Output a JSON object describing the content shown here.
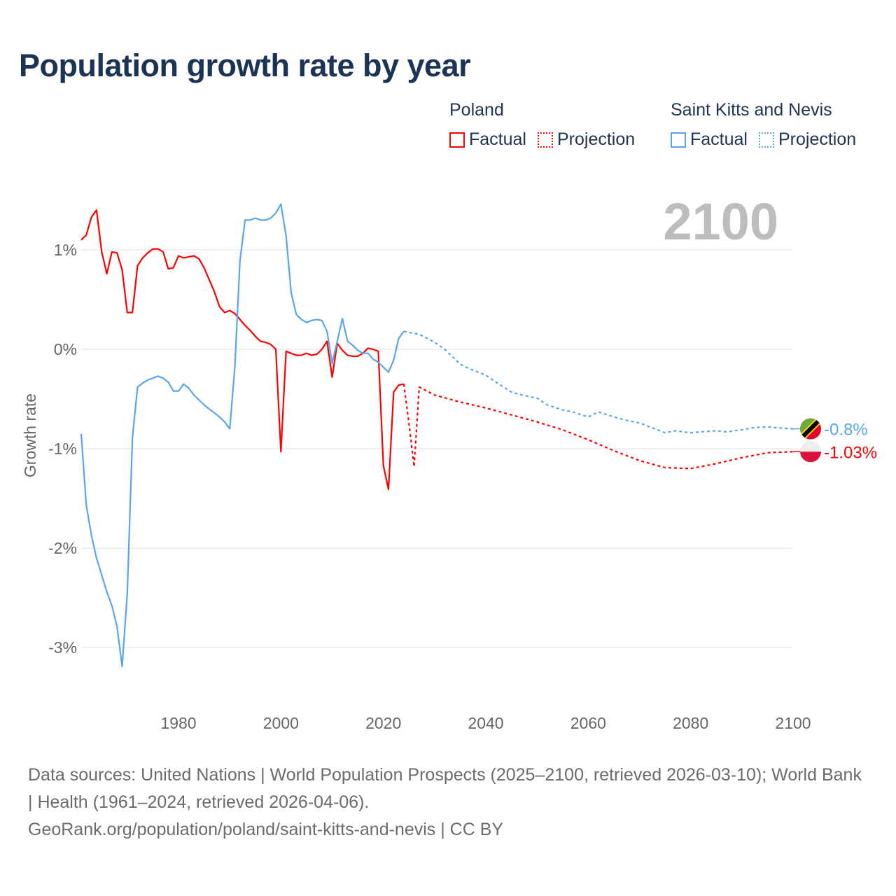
{
  "title": "Population growth rate by year",
  "legend": {
    "groups": [
      {
        "name": "Poland",
        "factual": "Factual",
        "projection": "Projection",
        "color": "#ff0000"
      },
      {
        "name": "Saint Kitts and Nevis",
        "factual": "Factual",
        "projection": "Projection",
        "color": "#5aa5ec"
      }
    ]
  },
  "year_display": "2100",
  "footer": {
    "sources": "Data sources: United Nations | World Population Prospects (2025–2100, retrieved 2026-03-10); World Bank | Health (1961–2024, retrieved 2026-04-06).",
    "credit": "GeoRank.org/population/poland/saint-kitts-and-nevis | CC BY"
  },
  "chart_data": {
    "type": "line",
    "title": "Population growth rate by year",
    "xlabel": "",
    "ylabel": "Growth rate",
    "xlim": [
      1961,
      2100
    ],
    "ylim": [
      -3.4,
      1.6
    ],
    "x_ticks": [
      1980,
      2000,
      2020,
      2040,
      2060,
      2080,
      2100
    ],
    "x_tick_labels": [
      "1980",
      "2000",
      "2020",
      "2040",
      "2060",
      "2080",
      "2100"
    ],
    "y_ticks": [
      1,
      0,
      -1,
      -2,
      -3
    ],
    "y_tick_labels": [
      "1%",
      "0%",
      "-1%",
      "-2%",
      "-3%"
    ],
    "grid": true,
    "legend_position": "top-right",
    "series": [
      {
        "name": "Poland Factual",
        "color": "#ff0000",
        "style": "solid",
        "x": [
          1961,
          1962,
          1963,
          1964,
          1965,
          1966,
          1967,
          1968,
          1969,
          1970,
          1971,
          1972,
          1973,
          1974,
          1975,
          1976,
          1977,
          1978,
          1979,
          1980,
          1981,
          1982,
          1983,
          1984,
          1985,
          1986,
          1987,
          1988,
          1989,
          1990,
          1991,
          1992,
          1993,
          1994,
          1995,
          1996,
          1997,
          1998,
          1999,
          2000,
          2001,
          2002,
          2003,
          2004,
          2005,
          2006,
          2007,
          2008,
          2009,
          2010,
          2011,
          2012,
          2013,
          2014,
          2015,
          2016,
          2017,
          2018,
          2019,
          2020,
          2021,
          2022,
          2023,
          2024
        ],
        "y": [
          1.1,
          1.15,
          1.33,
          1.4,
          0.98,
          0.76,
          0.98,
          0.97,
          0.8,
          0.37,
          0.37,
          0.84,
          0.92,
          0.97,
          1.01,
          1.01,
          0.98,
          0.81,
          0.82,
          0.94,
          0.92,
          0.93,
          0.94,
          0.91,
          0.82,
          0.7,
          0.58,
          0.43,
          0.37,
          0.39,
          0.36,
          0.3,
          0.24,
          0.19,
          0.13,
          0.08,
          0.07,
          0.05,
          0.0,
          -1.03,
          -0.02,
          -0.04,
          -0.06,
          -0.06,
          -0.04,
          -0.06,
          -0.05,
          0.0,
          0.08,
          -0.28,
          0.06,
          -0.01,
          -0.06,
          -0.07,
          -0.07,
          -0.04,
          0.01,
          0.0,
          -0.02,
          -1.17,
          -1.41,
          -0.43,
          -0.36,
          -0.35
        ]
      },
      {
        "name": "Poland Projection",
        "color": "#ff0000",
        "style": "dotted",
        "x": [
          2024,
          2025,
          2026,
          2027,
          2030,
          2035,
          2040,
          2045,
          2050,
          2055,
          2060,
          2065,
          2070,
          2075,
          2080,
          2085,
          2090,
          2095,
          2100
        ],
        "y": [
          -0.35,
          -0.75,
          -1.18,
          -0.38,
          -0.46,
          -0.53,
          -0.59,
          -0.66,
          -0.73,
          -0.81,
          -0.91,
          -1.02,
          -1.12,
          -1.19,
          -1.2,
          -1.15,
          -1.09,
          -1.04,
          -1.03
        ]
      },
      {
        "name": "Saint Kitts and Nevis Factual",
        "color": "#5aa5ec",
        "style": "solid",
        "x": [
          1961,
          1962,
          1963,
          1964,
          1965,
          1966,
          1967,
          1968,
          1969,
          1970,
          1971,
          1972,
          1973,
          1974,
          1975,
          1976,
          1977,
          1978,
          1979,
          1980,
          1981,
          1982,
          1983,
          1984,
          1985,
          1986,
          1987,
          1988,
          1989,
          1990,
          1991,
          1992,
          1993,
          1994,
          1995,
          1996,
          1997,
          1998,
          1999,
          2000,
          2001,
          2002,
          2003,
          2004,
          2005,
          2006,
          2007,
          2008,
          2009,
          2010,
          2011,
          2012,
          2013,
          2014,
          2015,
          2016,
          2017,
          2018,
          2019,
          2020,
          2021,
          2022,
          2023,
          2024
        ],
        "y": [
          -0.85,
          -1.57,
          -1.87,
          -2.1,
          -2.27,
          -2.44,
          -2.58,
          -2.79,
          -3.19,
          -2.46,
          -0.89,
          -0.38,
          -0.34,
          -0.31,
          -0.29,
          -0.27,
          -0.29,
          -0.33,
          -0.42,
          -0.42,
          -0.35,
          -0.39,
          -0.46,
          -0.51,
          -0.56,
          -0.6,
          -0.64,
          -0.68,
          -0.73,
          -0.8,
          -0.18,
          0.89,
          1.3,
          1.3,
          1.32,
          1.3,
          1.3,
          1.32,
          1.37,
          1.46,
          1.14,
          0.57,
          0.35,
          0.3,
          0.27,
          0.29,
          0.3,
          0.29,
          0.18,
          -0.14,
          0.08,
          0.31,
          0.08,
          0.04,
          -0.01,
          -0.04,
          -0.04,
          -0.1,
          -0.13,
          -0.18,
          -0.23,
          -0.11,
          0.11,
          0.18
        ]
      },
      {
        "name": "Saint Kitts and Nevis Projection",
        "color": "#5aa5ec",
        "style": "dotted",
        "x": [
          2024,
          2025,
          2027,
          2029,
          2030,
          2032,
          2035,
          2037,
          2040,
          2042,
          2045,
          2047,
          2050,
          2052,
          2055,
          2057,
          2060,
          2062,
          2065,
          2067,
          2070,
          2072,
          2075,
          2077,
          2080,
          2082,
          2085,
          2087,
          2090,
          2092,
          2095,
          2097,
          2100
        ],
        "y": [
          0.18,
          0.17,
          0.15,
          0.1,
          0.07,
          0.0,
          -0.15,
          -0.2,
          -0.26,
          -0.33,
          -0.43,
          -0.46,
          -0.49,
          -0.56,
          -0.61,
          -0.63,
          -0.68,
          -0.63,
          -0.68,
          -0.71,
          -0.74,
          -0.78,
          -0.84,
          -0.82,
          -0.84,
          -0.83,
          -0.82,
          -0.83,
          -0.81,
          -0.79,
          -0.78,
          -0.79,
          -0.8
        ]
      }
    ],
    "end_labels": [
      {
        "series": "Saint Kitts and Nevis",
        "text": "-0.8%",
        "value": -0.8,
        "color": "#5aa5ec"
      },
      {
        "series": "Poland",
        "text": "-1.03%",
        "value": -1.03,
        "color": "#ff0000"
      }
    ]
  }
}
